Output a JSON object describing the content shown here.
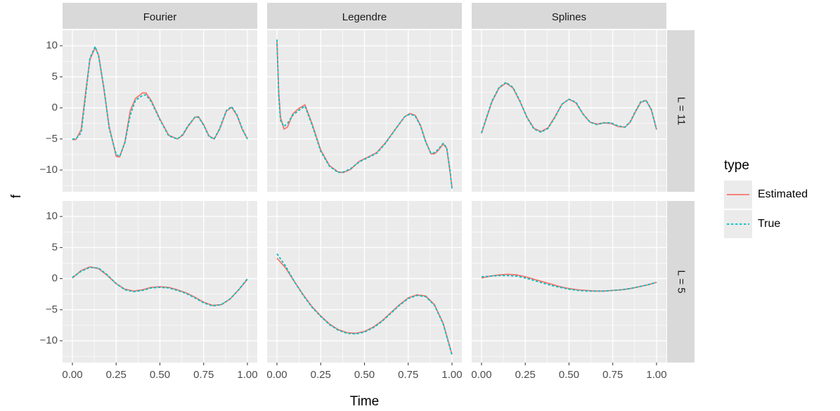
{
  "chart_data": {
    "type": "line",
    "xlabel": "Time",
    "ylabel": "f",
    "xlim": [
      0,
      1
    ],
    "ylim": [
      -13.5,
      12.5
    ],
    "x_ticks": [
      0,
      0.25,
      0.5,
      0.75,
      1
    ],
    "x_tick_labels": [
      "0.00",
      "0.25",
      "0.50",
      "0.75",
      "1.00"
    ],
    "y_ticks": [
      -10,
      -5,
      0,
      5,
      10
    ],
    "y_tick_labels": [
      "−10",
      "−5",
      "0",
      "5",
      "10"
    ],
    "columns": [
      "Fourier",
      "Legendre",
      "Splines"
    ],
    "rows": [
      "L = 11",
      "L = 5"
    ],
    "legend": {
      "title": "type",
      "entries": [
        {
          "label": "Estimated",
          "color": "#F8766D",
          "dash": "solid"
        },
        {
          "label": "True",
          "color": "#00BFC4",
          "dash": "dotted"
        }
      ]
    },
    "colors": {
      "panel_bg": "#EBEBEB",
      "strip_bg": "#D9D9D9",
      "grid": "#FFFFFF"
    },
    "panels": [
      {
        "column": "Fourier",
        "row": "L = 11",
        "x": [
          0,
          0.02,
          0.05,
          0.08,
          0.1,
          0.13,
          0.15,
          0.18,
          0.21,
          0.25,
          0.27,
          0.3,
          0.33,
          0.36,
          0.4,
          0.42,
          0.45,
          0.5,
          0.55,
          0.6,
          0.63,
          0.66,
          0.7,
          0.72,
          0.75,
          0.78,
          0.81,
          0.84,
          0.88,
          0.91,
          0.94,
          0.97,
          1
        ],
        "series": [
          {
            "name": "Estimated",
            "values": [
              -5.1,
              -5.1,
              -3.5,
              3.5,
              7.8,
              9.7,
              8.5,
              3.0,
              -3.0,
              -7.8,
              -7.9,
              -5.5,
              -0.5,
              1.5,
              2.4,
              2.4,
              1.2,
              -1.8,
              -4.4,
              -5.0,
              -4.4,
              -3.0,
              -1.5,
              -1.4,
              -2.7,
              -4.5,
              -5.0,
              -3.5,
              -0.5,
              0.1,
              -1.2,
              -3.4,
              -5.0
            ]
          },
          {
            "name": "True",
            "values": [
              -5.0,
              -5.0,
              -4.0,
              3.0,
              8.0,
              9.9,
              8.3,
              3.3,
              -3.3,
              -7.5,
              -7.8,
              -5.6,
              -1.2,
              1.2,
              2.0,
              2.1,
              1.0,
              -1.9,
              -4.5,
              -5.0,
              -4.3,
              -2.9,
              -1.5,
              -1.5,
              -2.8,
              -4.6,
              -5.0,
              -3.4,
              -0.4,
              0.2,
              -1.1,
              -3.3,
              -5.0
            ]
          }
        ]
      },
      {
        "column": "Legendre",
        "row": "L = 11",
        "x": [
          0,
          0.01,
          0.02,
          0.04,
          0.06,
          0.09,
          0.12,
          0.16,
          0.2,
          0.25,
          0.3,
          0.35,
          0.38,
          0.42,
          0.47,
          0.52,
          0.57,
          0.62,
          0.68,
          0.73,
          0.76,
          0.79,
          0.82,
          0.85,
          0.88,
          0.9,
          0.92,
          0.95,
          0.97,
          0.99,
          1
        ],
        "series": [
          {
            "name": "Estimated",
            "values": [
              10.6,
              2.5,
              -1.5,
              -3.4,
              -3.1,
              -1.0,
              -0.2,
              0.5,
              -2.5,
              -6.8,
              -9.3,
              -10.3,
              -10.4,
              -9.9,
              -8.6,
              -7.9,
              -7.2,
              -5.6,
              -3.3,
              -1.4,
              -0.9,
              -1.2,
              -2.8,
              -5.4,
              -7.4,
              -7.4,
              -6.9,
              -5.8,
              -6.5,
              -10.5,
              -12.8
            ]
          },
          {
            "name": "True",
            "values": [
              11.0,
              2.0,
              -2.0,
              -3.0,
              -2.5,
              -1.2,
              -0.5,
              0.3,
              -2.7,
              -7.0,
              -9.4,
              -10.4,
              -10.3,
              -9.8,
              -8.7,
              -8.0,
              -7.3,
              -5.7,
              -3.3,
              -1.4,
              -1.0,
              -1.3,
              -2.9,
              -5.5,
              -7.3,
              -7.2,
              -6.7,
              -5.7,
              -6.4,
              -10.3,
              -13.0
            ]
          }
        ]
      },
      {
        "column": "Splines",
        "row": "L = 11",
        "x": [
          0,
          0.03,
          0.06,
          0.1,
          0.14,
          0.18,
          0.22,
          0.26,
          0.3,
          0.34,
          0.38,
          0.42,
          0.46,
          0.5,
          0.54,
          0.58,
          0.62,
          0.66,
          0.7,
          0.74,
          0.78,
          0.82,
          0.85,
          0.88,
          0.91,
          0.94,
          0.97,
          1
        ],
        "series": [
          {
            "name": "Estimated",
            "values": [
              -4.1,
              -1.5,
              1.0,
              3.2,
              4.0,
              3.2,
              1.0,
              -1.5,
              -3.3,
              -3.8,
              -3.2,
              -1.4,
              0.6,
              1.4,
              0.8,
              -1.0,
              -2.3,
              -2.6,
              -2.4,
              -2.5,
              -3.0,
              -3.1,
              -2.3,
              -0.6,
              0.9,
              1.2,
              -0.3,
              -3.5
            ]
          },
          {
            "name": "True",
            "values": [
              -4.0,
              -1.4,
              1.1,
              3.3,
              4.1,
              3.3,
              1.1,
              -1.6,
              -3.4,
              -3.9,
              -3.3,
              -1.5,
              0.6,
              1.4,
              0.9,
              -1.0,
              -2.3,
              -2.7,
              -2.4,
              -2.4,
              -2.9,
              -3.1,
              -2.2,
              -0.5,
              1.0,
              1.2,
              -0.2,
              -3.4
            ]
          }
        ]
      },
      {
        "column": "Fourier",
        "row": "L = 5",
        "x": [
          0,
          0.05,
          0.1,
          0.15,
          0.2,
          0.25,
          0.3,
          0.35,
          0.4,
          0.45,
          0.5,
          0.55,
          0.6,
          0.65,
          0.7,
          0.75,
          0.8,
          0.85,
          0.9,
          0.95,
          1
        ],
        "series": [
          {
            "name": "Estimated",
            "values": [
              0.1,
              1.3,
              1.9,
              1.6,
              0.5,
              -0.8,
              -1.7,
              -2.0,
              -1.8,
              -1.4,
              -1.3,
              -1.4,
              -1.8,
              -2.3,
              -3.0,
              -3.8,
              -4.3,
              -4.2,
              -3.3,
              -1.8,
              -0.1
            ]
          },
          {
            "name": "True",
            "values": [
              0.2,
              1.2,
              1.8,
              1.7,
              0.6,
              -0.8,
              -1.8,
              -2.1,
              -1.9,
              -1.5,
              -1.4,
              -1.5,
              -1.9,
              -2.4,
              -3.1,
              -3.9,
              -4.4,
              -4.2,
              -3.3,
              -1.8,
              0.0
            ]
          }
        ]
      },
      {
        "column": "Legendre",
        "row": "L = 5",
        "x": [
          0,
          0.05,
          0.1,
          0.15,
          0.2,
          0.25,
          0.3,
          0.35,
          0.4,
          0.45,
          0.5,
          0.55,
          0.6,
          0.65,
          0.7,
          0.75,
          0.8,
          0.85,
          0.9,
          0.95,
          1
        ],
        "series": [
          {
            "name": "Estimated",
            "values": [
              3.3,
              1.7,
              -0.5,
              -2.6,
              -4.5,
              -6.0,
              -7.3,
              -8.2,
              -8.7,
              -8.8,
              -8.5,
              -7.8,
              -6.8,
              -5.5,
              -4.2,
              -3.1,
              -2.6,
              -2.8,
              -4.2,
              -7.2,
              -12.2
            ]
          },
          {
            "name": "True",
            "values": [
              4.0,
              2.0,
              -0.5,
              -2.7,
              -4.6,
              -6.1,
              -7.4,
              -8.3,
              -8.8,
              -8.9,
              -8.6,
              -7.9,
              -6.9,
              -5.6,
              -4.3,
              -3.2,
              -2.7,
              -2.9,
              -4.3,
              -7.3,
              -12.3
            ]
          }
        ]
      },
      {
        "column": "Splines",
        "row": "L = 5",
        "x": [
          0,
          0.05,
          0.1,
          0.15,
          0.2,
          0.25,
          0.3,
          0.35,
          0.4,
          0.45,
          0.5,
          0.55,
          0.6,
          0.65,
          0.7,
          0.75,
          0.8,
          0.85,
          0.9,
          0.95,
          1
        ],
        "series": [
          {
            "name": "Estimated",
            "values": [
              0.1,
              0.4,
              0.6,
              0.7,
              0.6,
              0.3,
              -0.1,
              -0.5,
              -0.9,
              -1.3,
              -1.6,
              -1.8,
              -1.9,
              -2.0,
              -2.0,
              -1.9,
              -1.8,
              -1.6,
              -1.3,
              -1.0,
              -0.6
            ]
          },
          {
            "name": "True",
            "values": [
              0.3,
              0.4,
              0.5,
              0.5,
              0.4,
              0.1,
              -0.3,
              -0.7,
              -1.1,
              -1.4,
              -1.7,
              -1.9,
              -2.0,
              -2.0,
              -2.0,
              -1.9,
              -1.8,
              -1.6,
              -1.3,
              -1.0,
              -0.6
            ]
          }
        ]
      }
    ]
  }
}
